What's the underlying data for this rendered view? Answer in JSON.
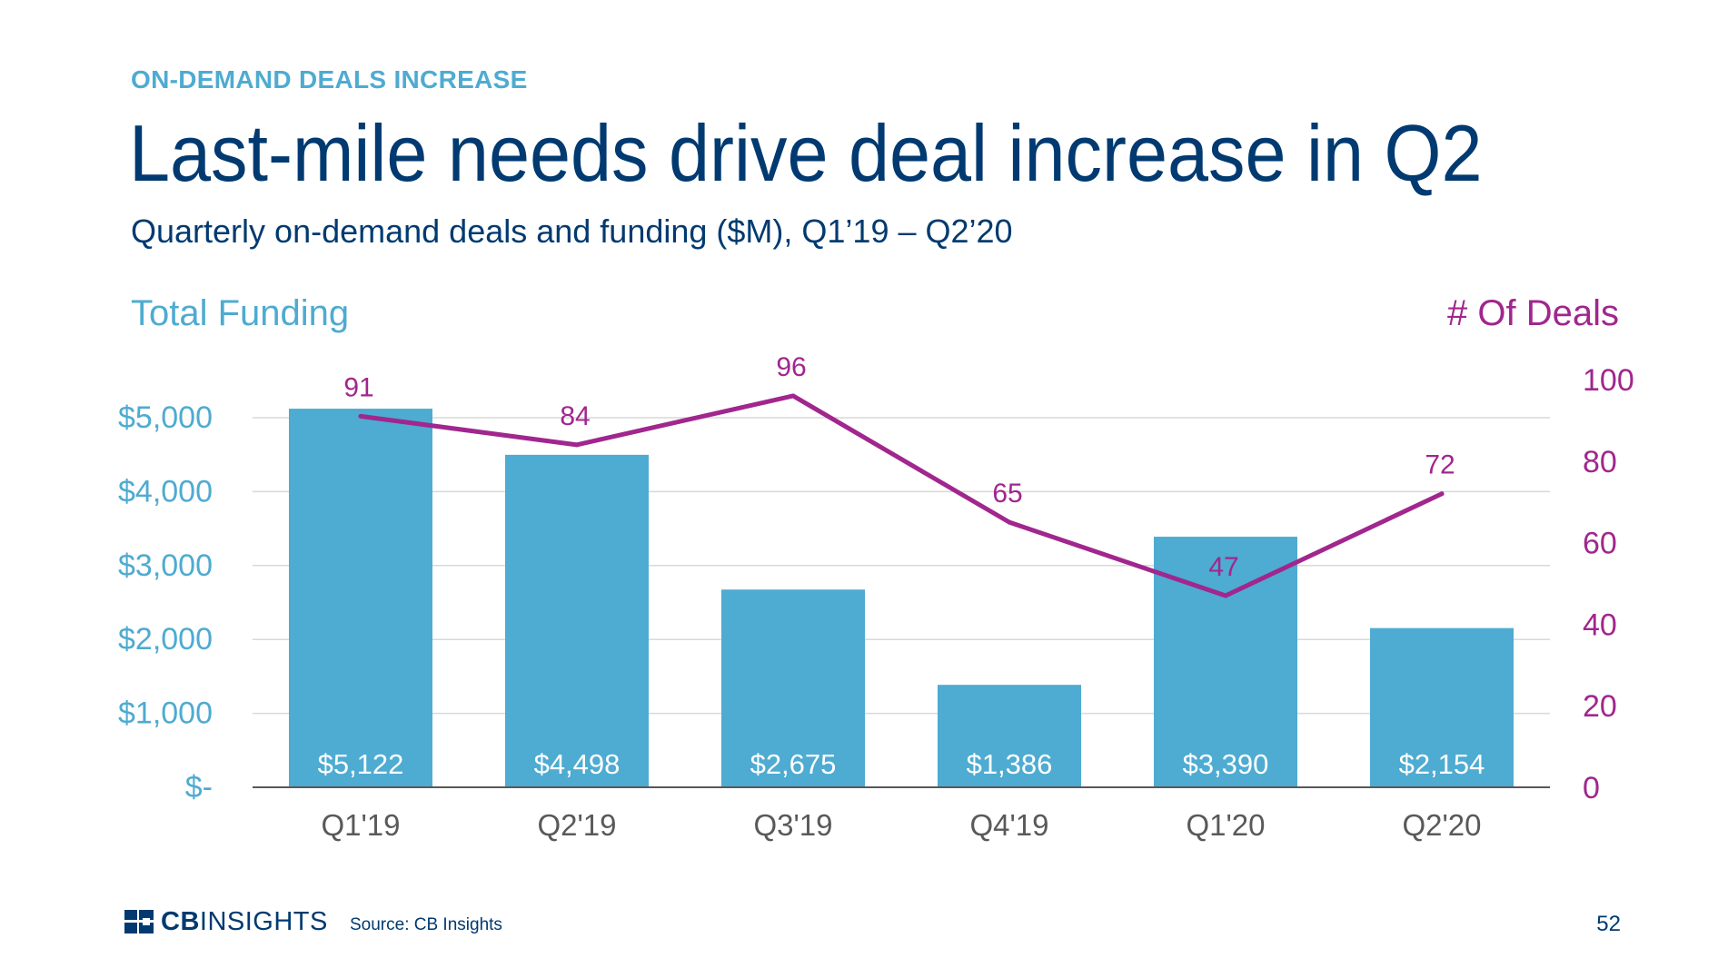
{
  "header": {
    "kicker": "ON-DEMAND DEALS INCREASE",
    "title": "Last-mile needs drive deal increase in Q2",
    "subtitle": "Quarterly on-demand deals and funding ($M), Q1’19 – Q2’20"
  },
  "chart_data": {
    "type": "bar",
    "categories": [
      "Q1'19",
      "Q2'19",
      "Q3'19",
      "Q4'19",
      "Q1'20",
      "Q2'20"
    ],
    "series": [
      {
        "name": "Total Funding",
        "type": "bar",
        "axis": "left",
        "color": "#4eabd1",
        "values": [
          5122,
          4498,
          2675,
          1386,
          3390,
          2154
        ],
        "labels": [
          "$5,122",
          "$4,498",
          "$2,675",
          "$1,386",
          "$3,390",
          "$2,154"
        ]
      },
      {
        "name": "# Of Deals",
        "type": "line",
        "axis": "right",
        "color": "#a1268e",
        "values": [
          91,
          84,
          96,
          65,
          47,
          72
        ],
        "labels": [
          "91",
          "84",
          "96",
          "65",
          "47",
          "72"
        ]
      }
    ],
    "y_left": {
      "label": "Total Funding",
      "ylim": [
        0,
        5000
      ],
      "ticks": [
        0,
        1000,
        2000,
        3000,
        4000,
        5000
      ],
      "tick_labels": [
        "$-",
        "$1,000",
        "$2,000",
        "$3,000",
        "$4,000",
        "$5,000"
      ]
    },
    "y_right": {
      "label": "# Of Deals",
      "ylim": [
        0,
        100
      ],
      "ticks": [
        0,
        20,
        40,
        60,
        80,
        100
      ],
      "tick_labels": [
        "0",
        "20",
        "40",
        "60",
        "80",
        "100"
      ]
    },
    "grid": true,
    "colors": {
      "bar": "#4eabd1",
      "line": "#a1268e",
      "grid": "#d9d9d9",
      "axis": "#595959",
      "category_text": "#595959"
    }
  },
  "footer": {
    "logo_part1": "CB",
    "logo_part2": "INSIGHTS",
    "source": "Source: CB Insights",
    "page_number": "52"
  }
}
